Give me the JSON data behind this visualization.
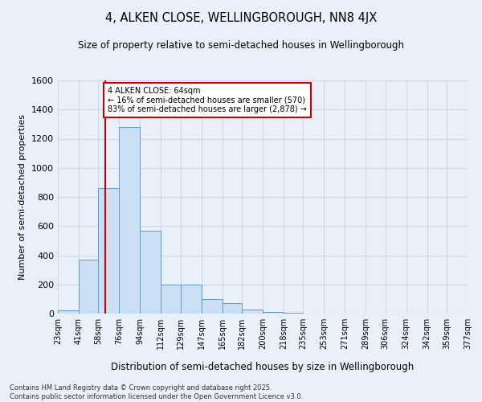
{
  "title": "4, ALKEN CLOSE, WELLINGBOROUGH, NN8 4JX",
  "subtitle": "Size of property relative to semi-detached houses in Wellingborough",
  "xlabel": "Distribution of semi-detached houses by size in Wellingborough",
  "ylabel": "Number of semi-detached properties",
  "bin_edges": [
    23,
    41,
    58,
    76,
    94,
    112,
    129,
    147,
    165,
    182,
    200,
    218,
    235,
    253,
    271,
    289,
    306,
    324,
    342,
    359,
    377
  ],
  "bar_heights": [
    20,
    370,
    860,
    1280,
    570,
    200,
    200,
    100,
    70,
    30,
    10,
    5,
    2,
    2,
    2,
    1,
    0,
    1,
    0,
    0
  ],
  "bar_color": "#cce0f5",
  "bar_edge_color": "#5b9bd5",
  "grid_color": "#d0d8e8",
  "bg_color": "#eaf0f9",
  "vline_x": 64,
  "vline_color": "#cc0000",
  "annotation_title": "4 ALKEN CLOSE: 64sqm",
  "annotation_line2": "← 16% of semi-detached houses are smaller (570)",
  "annotation_line3": "83% of semi-detached houses are larger (2,878) →",
  "annotation_box_color": "#cc0000",
  "ylim": [
    0,
    1600
  ],
  "yticks": [
    0,
    200,
    400,
    600,
    800,
    1000,
    1200,
    1400,
    1600
  ],
  "footnote1": "Contains HM Land Registry data © Crown copyright and database right 2025.",
  "footnote2": "Contains public sector information licensed under the Open Government Licence v3.0."
}
